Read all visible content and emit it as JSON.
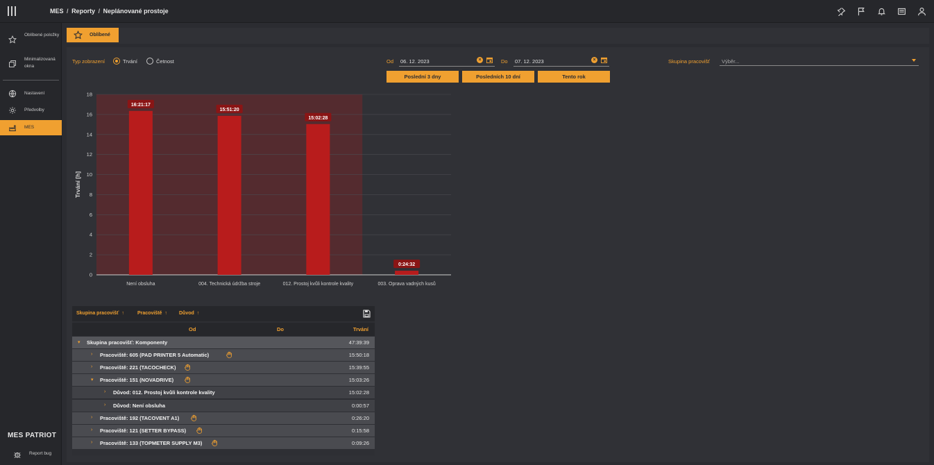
{
  "breadcrumb": {
    "app": "MES",
    "section": "Reporty",
    "page": "Neplánované prostoje",
    "separator": "/"
  },
  "topbar": {
    "icons": [
      "pin-icon",
      "flag-icon",
      "bell-icon",
      "news-icon",
      "user-icon"
    ]
  },
  "sidebar": {
    "items": [
      {
        "label": "Oblíbené položky",
        "icon": "star-icon"
      },
      {
        "label": "Minimalizovaná okna",
        "icon": "windows-icon"
      },
      {
        "label": "Nastavení",
        "icon": "globe-icon"
      },
      {
        "label": "Předvolby",
        "icon": "gear-icon"
      },
      {
        "label": "MES",
        "icon": "factory-icon",
        "active": true
      }
    ],
    "brand": "MES PATRIOT",
    "report_bug": "Report bug"
  },
  "favorites_tab": {
    "label": "Oblíbené"
  },
  "filters": {
    "display_type_label": "Typ zobrazení",
    "options": [
      "Trvání",
      "Četnost"
    ],
    "selected": "Trvání",
    "from_label": "Od",
    "from_value": "06. 12. 2023",
    "to_label": "Do",
    "to_value": "07. 12. 2023",
    "quick_buttons": [
      "Poslední 3 dny",
      "Posledních 10 dní",
      "Tento rok"
    ],
    "group_label": "Skupina pracovišť",
    "group_placeholder": "Výběr..."
  },
  "chart_data": {
    "type": "bar",
    "ylabel": "Trvání [h]",
    "ylim": [
      0,
      18
    ],
    "yticks": [
      0,
      2,
      4,
      6,
      8,
      10,
      12,
      14,
      16,
      18
    ],
    "categories": [
      "Není obsluha",
      "004. Technická údržba stroje",
      "012. Prostoj kvůli kontrole kvality",
      "003. Oprava vadných kusů"
    ],
    "values": [
      16.35,
      15.86,
      15.04,
      0.41
    ],
    "data_labels": [
      "16:21:17",
      "15:51:20",
      "15:02:28",
      "0:24:32"
    ],
    "bar_color": "#b81c1c",
    "highlight_color": "#5a2a2e",
    "grid": true
  },
  "grid": {
    "group_chips": [
      "Skupina pracovišť",
      "Pracoviště",
      "Důvod"
    ],
    "columns": {
      "od": "Od",
      "do": "Do",
      "trvani": "Trvání"
    },
    "rows": [
      {
        "level": 0,
        "toggle": "▾",
        "label": "Skupina pracovišť: Komponenty",
        "value": "47:39:39",
        "hand": false
      },
      {
        "level": 1,
        "toggle": "›",
        "label": "Pracoviště: 605 (PAD PRINTER 5 Automatic)",
        "value": "15:50:18",
        "hand": true
      },
      {
        "level": 1,
        "toggle": "›",
        "label": "Pracoviště: 221 (TACOCHECK)",
        "value": "15:39:55",
        "hand": true
      },
      {
        "level": 1,
        "toggle": "▾",
        "label": "Pracoviště: 151 (NOVADRIVE)",
        "value": "15:03:26",
        "hand": true
      },
      {
        "level": 2,
        "toggle": "›",
        "label": "Důvod: 012. Prostoj kvůli kontrole kvality",
        "value": "15:02:28",
        "hand": false
      },
      {
        "level": 2,
        "toggle": "›",
        "label": "Důvod: Není obsluha",
        "value": "0:00:57",
        "hand": false
      },
      {
        "level": 1,
        "toggle": "›",
        "label": "Pracoviště: 192 (TACOVENT A1)",
        "value": "0:26:20",
        "hand": true
      },
      {
        "level": 1,
        "toggle": "›",
        "label": "Pracoviště: 121 (SETTER BYPASS)",
        "value": "0:15:58",
        "hand": true
      },
      {
        "level": 1,
        "toggle": "›",
        "label": "Pracoviště: 133 (TOPMETER SUPPLY M3)",
        "value": "0:09:26",
        "hand": true
      }
    ]
  }
}
